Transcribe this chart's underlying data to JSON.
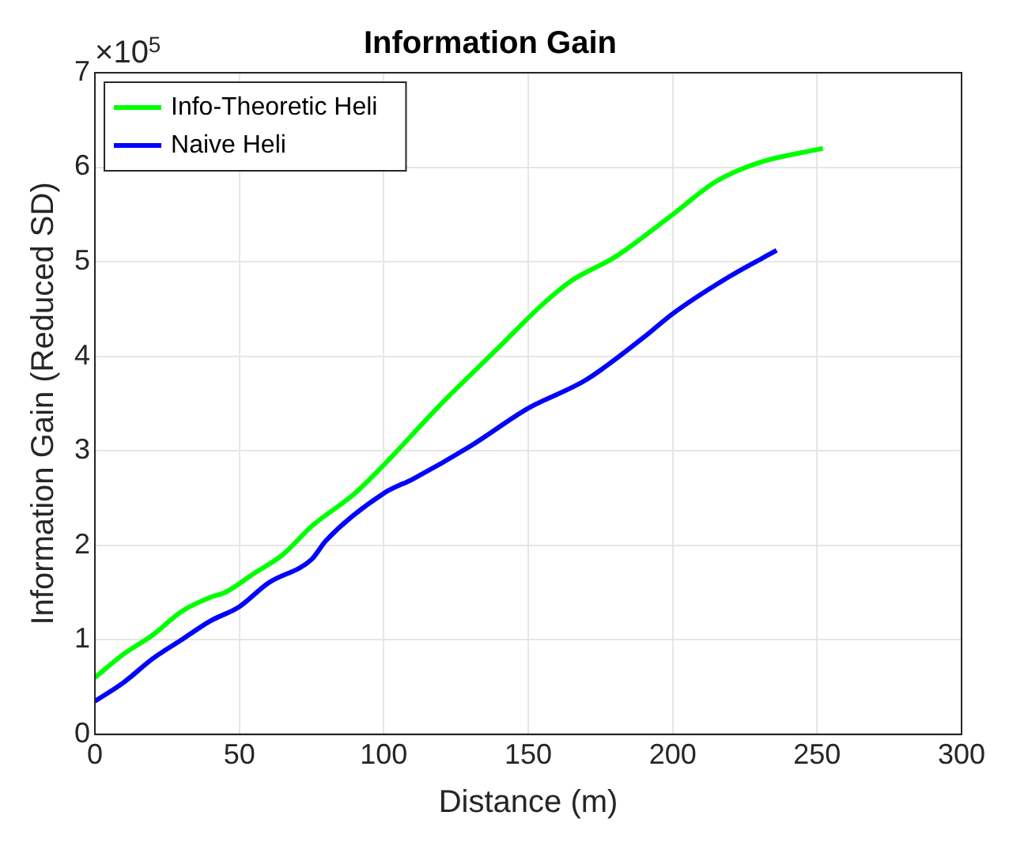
{
  "chart_data": {
    "type": "line",
    "title": "Information Gain",
    "xlabel": "Distance (m)",
    "ylabel": "Information Gain (Reduced SD)",
    "annotations": [
      "×10$^{5}$"
    ],
    "xlim": [
      0,
      300
    ],
    "xticks": [
      0,
      50,
      100,
      150,
      200,
      250,
      300
    ],
    "ylim": [
      0,
      7
    ],
    "yticks": [
      0,
      1,
      2,
      3,
      4,
      5,
      6,
      7
    ],
    "grid": true,
    "legend": "top left",
    "marker": "none",
    "line_style": "solid",
    "series": [
      {
        "name": "Info-Theoretic Heli",
        "color": "#00ff00",
        "x": [
          0,
          10,
          20,
          30,
          40,
          45,
          55,
          65,
          75,
          90,
          100,
          120,
          140,
          155,
          165,
          180,
          200,
          215,
          230,
          252
        ],
        "values": [
          0.6,
          0.85,
          1.05,
          1.3,
          1.45,
          1.5,
          1.7,
          1.9,
          2.2,
          2.55,
          2.85,
          3.5,
          4.1,
          4.55,
          4.8,
          5.05,
          5.5,
          5.85,
          6.05,
          6.2
        ]
      },
      {
        "name": "Naive Heli",
        "color": "#0000ff",
        "x": [
          0,
          10,
          20,
          30,
          40,
          50,
          60,
          75,
          80,
          100,
          110,
          130,
          150,
          170,
          190,
          200,
          220,
          236
        ],
        "values": [
          0.35,
          0.55,
          0.8,
          1.0,
          1.2,
          1.35,
          1.6,
          1.85,
          2.05,
          2.55,
          2.7,
          3.05,
          3.45,
          3.75,
          4.2,
          4.45,
          4.85,
          5.12
        ]
      }
    ]
  }
}
